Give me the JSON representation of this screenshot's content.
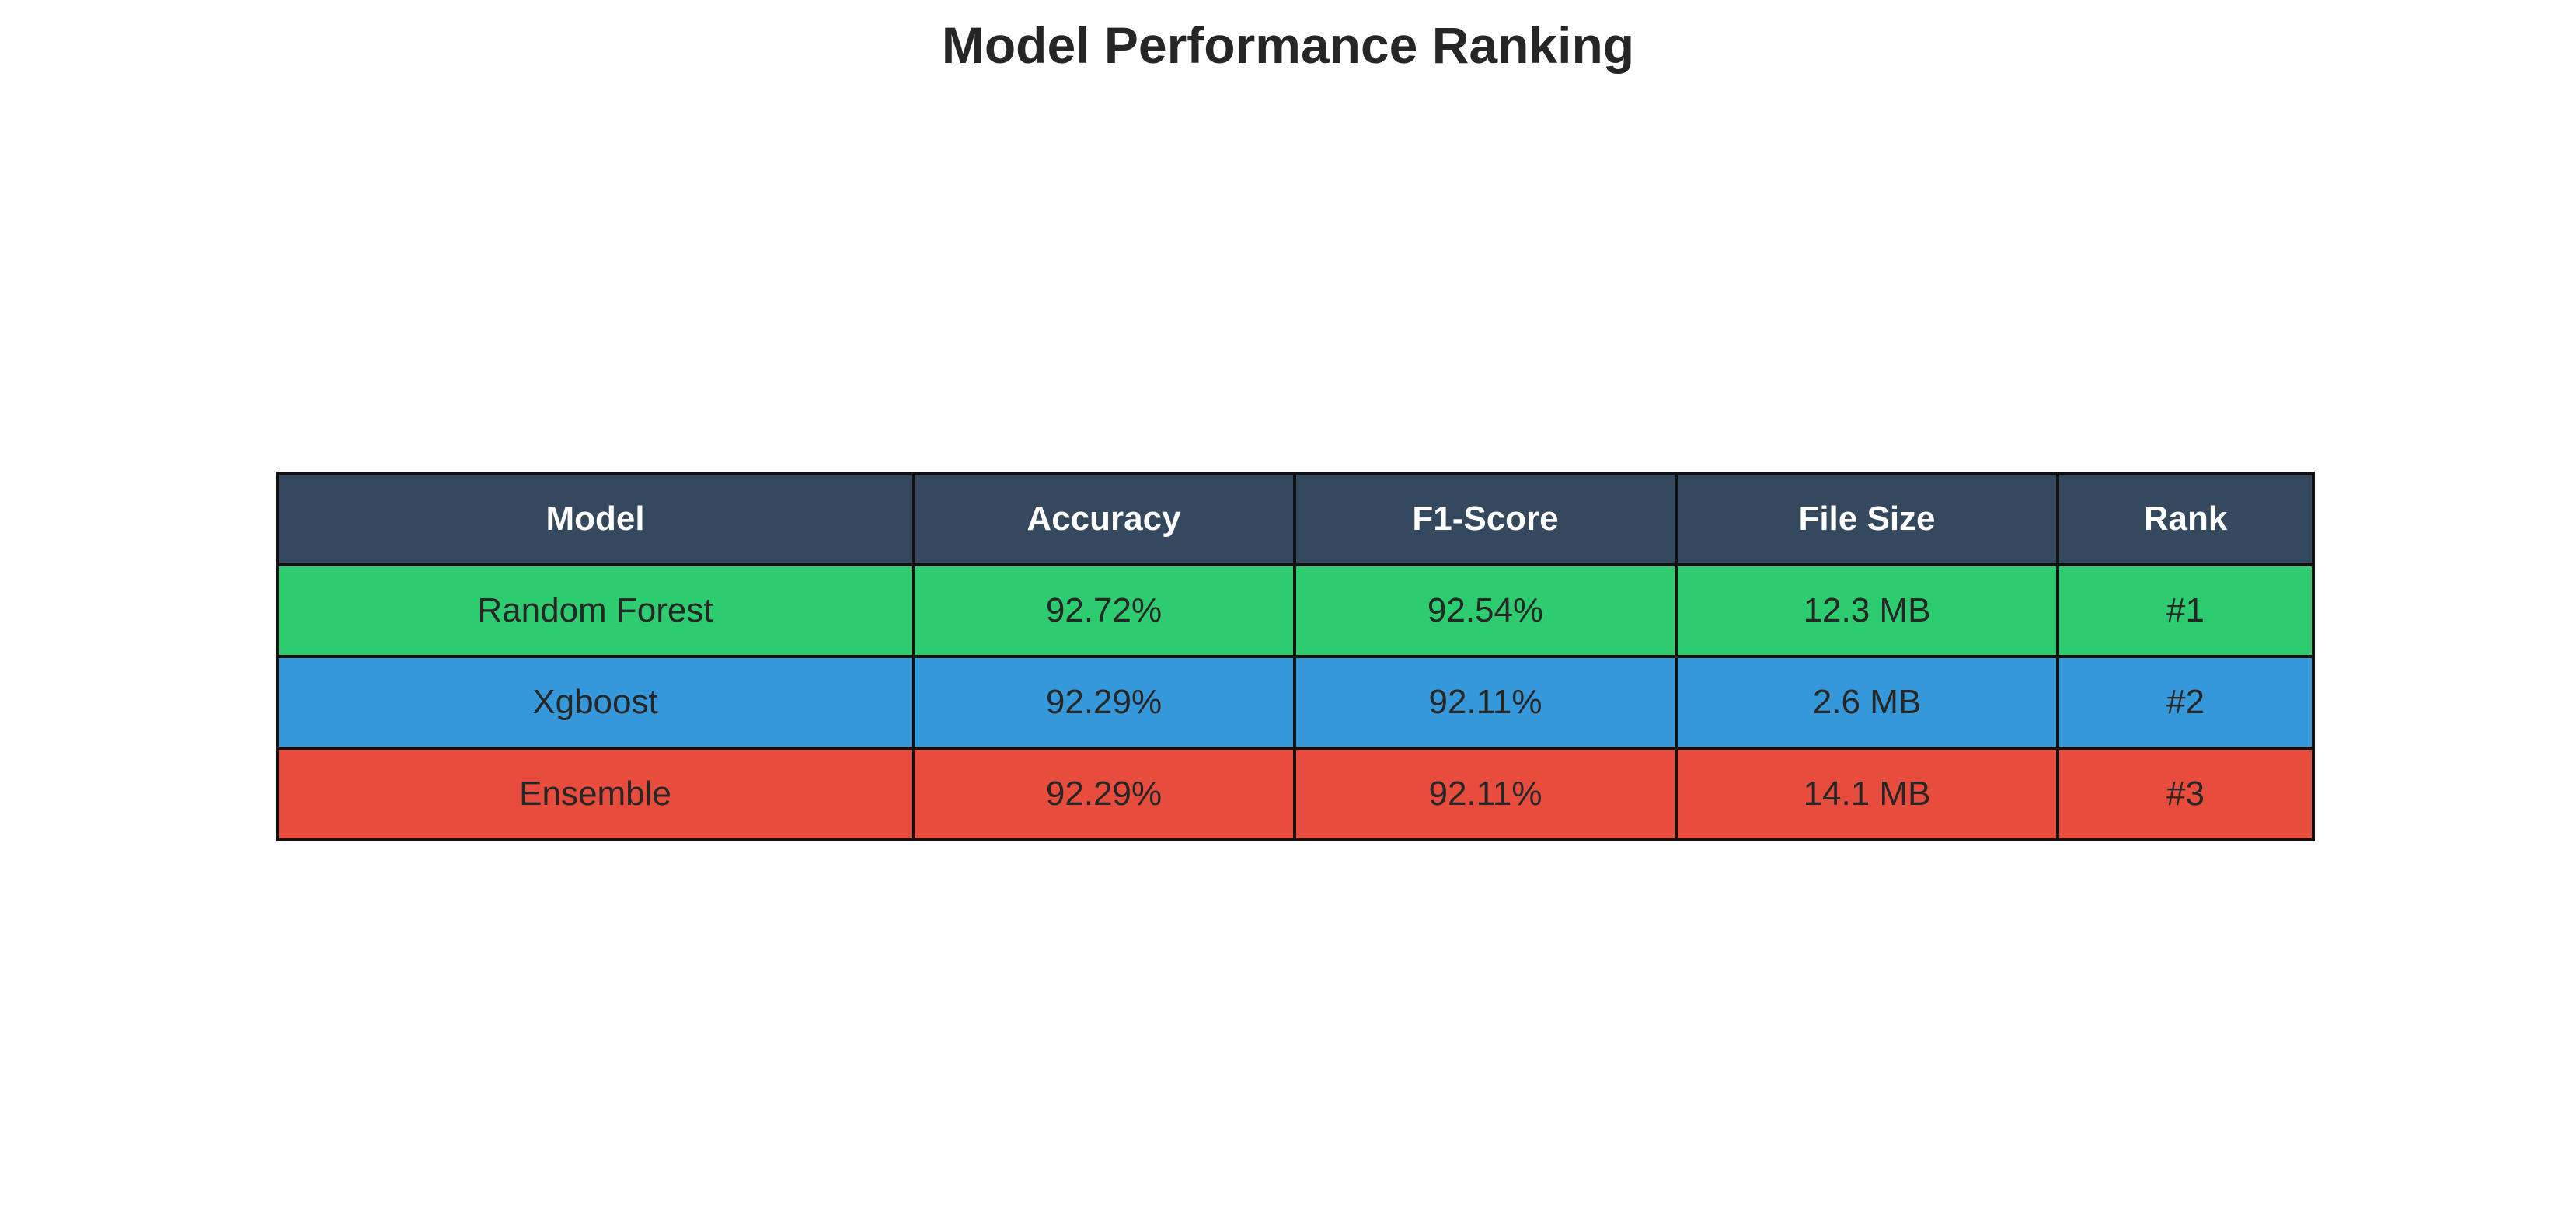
{
  "chart_data": {
    "type": "table",
    "title": "Model Performance Ranking",
    "header_color": "#34495e",
    "columns": [
      "Model",
      "Accuracy",
      "F1-Score",
      "File Size",
      "Rank"
    ],
    "rows": [
      {
        "cells": [
          "Random Forest",
          "92.72%",
          "92.54%",
          "12.3 MB",
          "#1"
        ],
        "color": "#2ecc71"
      },
      {
        "cells": [
          "Xgboost",
          "92.29%",
          "92.11%",
          "2.6 MB",
          "#2"
        ],
        "color": "#3498db"
      },
      {
        "cells": [
          "Ensemble",
          "92.29%",
          "92.11%",
          "14.1 MB",
          "#3"
        ],
        "color": "#e74c3c"
      }
    ]
  }
}
